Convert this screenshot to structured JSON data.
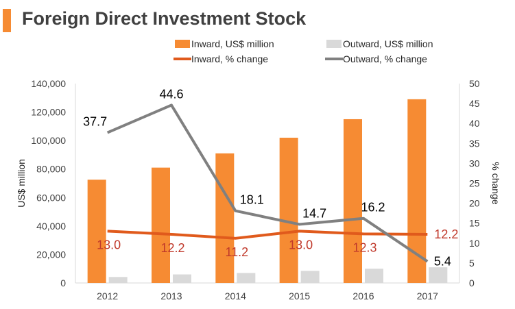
{
  "title": "Foreign Direct Investment Stock",
  "colors": {
    "accent": "#F68B33",
    "inward_bar": "#F68B33",
    "outward_bar": "#D9D9D9",
    "inward_line": "#E05A1C",
    "outward_line": "#808080",
    "inward_label": "#C0392B",
    "outward_label": "#000000",
    "text": "#404040"
  },
  "chart_data": {
    "type": "bar",
    "title": "Foreign Direct Investment Stock",
    "categories": [
      "2012",
      "2013",
      "2014",
      "2015",
      "2016",
      "2017"
    ],
    "ylabel": "US$ million",
    "y2label": "% change",
    "ylim": [
      0,
      140000
    ],
    "y2lim": [
      0,
      50
    ],
    "yticks": [
      "0",
      "20,000",
      "40,000",
      "60,000",
      "80,000",
      "100,000",
      "120,000",
      "140,000"
    ],
    "y2ticks": [
      "0",
      "5",
      "10",
      "15",
      "20",
      "25",
      "30",
      "35",
      "40",
      "45",
      "50"
    ],
    "legend_position": "top",
    "series": [
      {
        "name": "Inward, US$ million",
        "type": "bar",
        "axis": "left",
        "values": [
          72500,
          81000,
          91000,
          102000,
          115000,
          129000
        ]
      },
      {
        "name": "Outward, US$ million",
        "type": "bar",
        "axis": "left",
        "values": [
          4200,
          6000,
          7000,
          8500,
          10000,
          11000
        ]
      },
      {
        "name": "Inward, % change",
        "type": "line",
        "axis": "right",
        "values": [
          13.0,
          12.2,
          11.2,
          13.0,
          12.3,
          12.2
        ],
        "labels": [
          "13.0",
          "12.2",
          "11.2",
          "13.0",
          "12.3",
          "12.2"
        ]
      },
      {
        "name": "Outward, % change",
        "type": "line",
        "axis": "right",
        "values": [
          37.7,
          44.6,
          18.1,
          14.7,
          16.2,
          5.4
        ],
        "labels": [
          "37.7",
          "44.6",
          "18.1",
          "14.7",
          "16.2",
          "5.4"
        ]
      }
    ]
  }
}
